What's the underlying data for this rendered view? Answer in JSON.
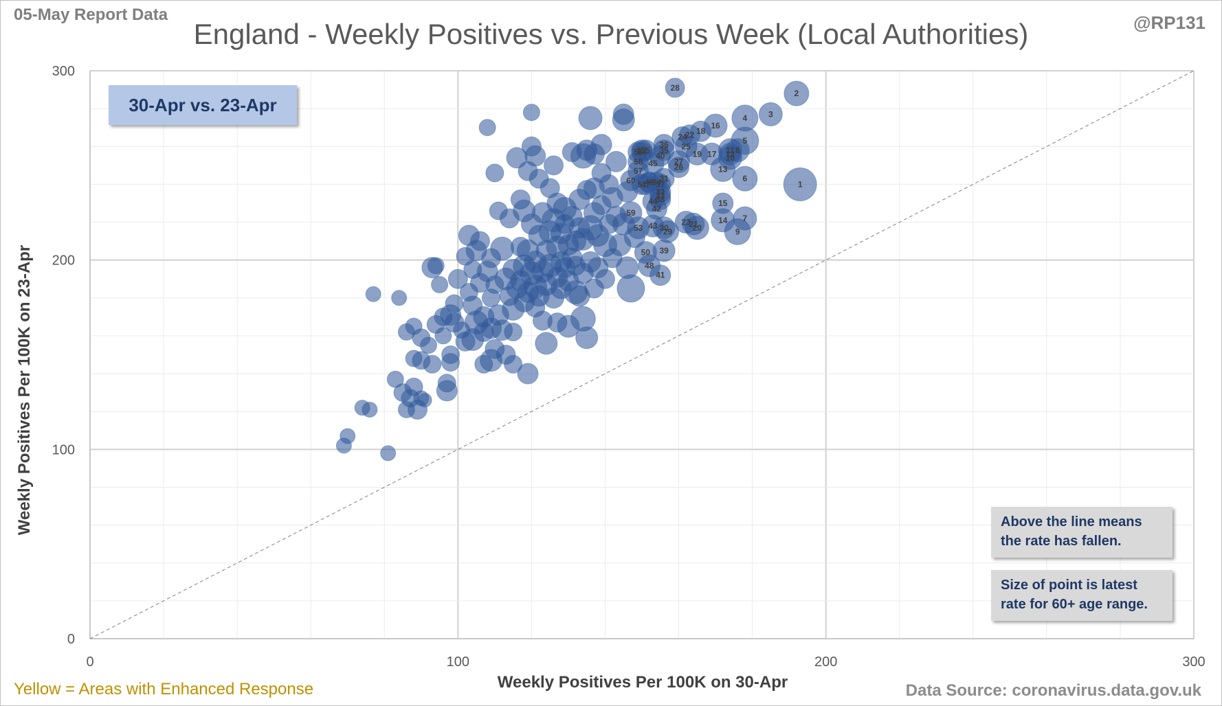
{
  "header": {
    "report": "05-May Report Data",
    "handle": "@RP131"
  },
  "footer": {
    "legend_note": "Yellow = Areas with Enhanced  Response",
    "source": "Data Source: coronavirus.data.gov.uk"
  },
  "period_box": "30-Apr vs. 23-Apr",
  "notes": {
    "line": "Above the line means the rate has fallen.",
    "size": "Size of point is latest rate for 60+ age range."
  },
  "colors": {
    "point": "#2f5597",
    "label": "#404040",
    "grid": "#d9d9d9"
  },
  "chart_data": {
    "type": "scatter",
    "title": "England - Weekly Positives vs. Previous Week (Local Authorities)",
    "xlabel": "Weekly Positives Per 100K on 30-Apr",
    "ylabel": "Weekly Positives Per 100K on 23-Apr",
    "xlim": [
      0,
      300
    ],
    "ylim": [
      0,
      300
    ],
    "xticks": [
      0,
      100,
      200,
      300
    ],
    "yticks": [
      0,
      100,
      200,
      300
    ],
    "grid": true,
    "reference_line": "y = x",
    "bubble_size": "latest rate for 60+ age range",
    "labelled_points": [
      {
        "label": "1",
        "x": 193,
        "y": 240,
        "s": 24
      },
      {
        "label": "2",
        "x": 192,
        "y": 288,
        "s": 18
      },
      {
        "label": "3",
        "x": 185,
        "y": 277,
        "s": 17
      },
      {
        "label": "4",
        "x": 178,
        "y": 275,
        "s": 19
      },
      {
        "label": "5",
        "x": 178,
        "y": 263,
        "s": 20
      },
      {
        "label": "6",
        "x": 178,
        "y": 243,
        "s": 18
      },
      {
        "label": "7",
        "x": 178,
        "y": 222,
        "s": 17
      },
      {
        "label": "9",
        "x": 176,
        "y": 215,
        "s": 19
      },
      {
        "label": "10",
        "x": 174,
        "y": 254,
        "s": 17
      },
      {
        "label": "11",
        "x": 174,
        "y": 258,
        "s": 17
      },
      {
        "label": "8",
        "x": 176,
        "y": 258,
        "s": 17
      },
      {
        "label": "12",
        "x": 174,
        "y": 256,
        "s": 16
      },
      {
        "label": "13",
        "x": 172,
        "y": 248,
        "s": 18
      },
      {
        "label": "14",
        "x": 172,
        "y": 221,
        "s": 17
      },
      {
        "label": "15",
        "x": 172,
        "y": 230,
        "s": 15
      },
      {
        "label": "16",
        "x": 170,
        "y": 271,
        "s": 17
      },
      {
        "label": "17",
        "x": 169,
        "y": 256,
        "s": 16
      },
      {
        "label": "18",
        "x": 166,
        "y": 268,
        "s": 15
      },
      {
        "label": "19",
        "x": 165,
        "y": 256,
        "s": 16
      },
      {
        "label": "20",
        "x": 165,
        "y": 217,
        "s": 17
      },
      {
        "label": "21",
        "x": 164,
        "y": 219,
        "s": 16
      },
      {
        "label": "22",
        "x": 163,
        "y": 266,
        "s": 15
      },
      {
        "label": "23",
        "x": 162,
        "y": 220,
        "s": 16
      },
      {
        "label": "24",
        "x": 161,
        "y": 265,
        "s": 15
      },
      {
        "label": "25",
        "x": 162,
        "y": 260,
        "s": 16
      },
      {
        "label": "26",
        "x": 160,
        "y": 249,
        "s": 15
      },
      {
        "label": "27",
        "x": 160,
        "y": 252,
        "s": 16
      },
      {
        "label": "28",
        "x": 159,
        "y": 291,
        "s": 14
      },
      {
        "label": "29",
        "x": 157,
        "y": 215,
        "s": 16
      },
      {
        "label": "30",
        "x": 156,
        "y": 217,
        "s": 16
      },
      {
        "label": "31",
        "x": 156,
        "y": 243,
        "s": 15
      },
      {
        "label": "32",
        "x": 155,
        "y": 236,
        "s": 15
      },
      {
        "label": "33",
        "x": 155,
        "y": 234,
        "s": 15
      },
      {
        "label": "34",
        "x": 154,
        "y": 241,
        "s": 15
      },
      {
        "label": "35",
        "x": 156,
        "y": 258,
        "s": 15
      },
      {
        "label": "36",
        "x": 156,
        "y": 261,
        "s": 15
      },
      {
        "label": "37",
        "x": 155,
        "y": 240,
        "s": 15
      },
      {
        "label": "38",
        "x": 155,
        "y": 232,
        "s": 15
      },
      {
        "label": "39",
        "x": 156,
        "y": 205,
        "s": 16
      },
      {
        "label": "40",
        "x": 155,
        "y": 255,
        "s": 15
      },
      {
        "label": "41",
        "x": 155,
        "y": 192,
        "s": 15
      },
      {
        "label": "42",
        "x": 154,
        "y": 227,
        "s": 15
      },
      {
        "label": "43",
        "x": 153,
        "y": 218,
        "s": 16
      },
      {
        "label": "44",
        "x": 153,
        "y": 231,
        "s": 15
      },
      {
        "label": "45",
        "x": 153,
        "y": 251,
        "s": 16
      },
      {
        "label": "46",
        "x": 152,
        "y": 241,
        "s": 15
      },
      {
        "label": "47",
        "x": 151,
        "y": 240,
        "s": 15
      },
      {
        "label": "48",
        "x": 152,
        "y": 197,
        "s": 16
      },
      {
        "label": "49",
        "x": 152,
        "y": 241,
        "s": 15
      },
      {
        "label": "50",
        "x": 151,
        "y": 204,
        "s": 16
      },
      {
        "label": "51",
        "x": 150,
        "y": 240,
        "s": 15
      },
      {
        "label": "52",
        "x": 150,
        "y": 258,
        "s": 15
      },
      {
        "label": "53",
        "x": 149,
        "y": 217,
        "s": 16
      },
      {
        "label": "54",
        "x": 150,
        "y": 257,
        "s": 15
      },
      {
        "label": "55",
        "x": 151,
        "y": 258,
        "s": 15
      },
      {
        "label": "56",
        "x": 149,
        "y": 257,
        "s": 15
      },
      {
        "label": "57",
        "x": 149,
        "y": 247,
        "s": 15
      },
      {
        "label": "58",
        "x": 149,
        "y": 252,
        "s": 15
      },
      {
        "label": "59",
        "x": 147,
        "y": 225,
        "s": 16
      },
      {
        "label": "60",
        "x": 147,
        "y": 242,
        "s": 15
      }
    ],
    "other_points": [
      [
        69,
        102,
        11
      ],
      [
        70,
        107,
        11
      ],
      [
        74,
        122,
        11
      ],
      [
        76,
        121,
        11
      ],
      [
        77,
        182,
        11
      ],
      [
        81,
        98,
        11
      ],
      [
        83,
        137,
        12
      ],
      [
        84,
        180,
        11
      ],
      [
        85,
        130,
        13
      ],
      [
        86,
        121,
        12
      ],
      [
        86,
        162,
        12
      ],
      [
        87,
        127,
        13
      ],
      [
        88,
        148,
        12
      ],
      [
        88,
        133,
        13
      ],
      [
        88,
        165,
        12
      ],
      [
        89,
        121,
        14
      ],
      [
        90,
        127,
        11
      ],
      [
        90,
        147,
        13
      ],
      [
        90,
        159,
        13
      ],
      [
        91,
        126,
        10
      ],
      [
        92,
        155,
        12
      ],
      [
        93,
        145,
        13
      ],
      [
        93,
        196,
        15
      ],
      [
        94,
        166,
        13
      ],
      [
        94,
        197,
        12
      ],
      [
        95,
        187,
        12
      ],
      [
        96,
        170,
        13
      ],
      [
        96,
        160,
        12
      ],
      [
        97,
        135,
        13
      ],
      [
        97,
        131,
        15
      ],
      [
        98,
        150,
        13
      ],
      [
        98,
        146,
        13
      ],
      [
        98,
        171,
        15
      ],
      [
        99,
        167,
        14
      ],
      [
        99,
        177,
        13
      ],
      [
        100,
        190,
        14
      ],
      [
        101,
        163,
        12
      ],
      [
        102,
        202,
        13
      ],
      [
        102,
        157,
        14
      ],
      [
        103,
        213,
        15
      ],
      [
        103,
        183,
        13
      ],
      [
        104,
        158,
        16
      ],
      [
        104,
        176,
        14
      ],
      [
        104,
        195,
        13
      ],
      [
        105,
        167,
        17
      ],
      [
        105,
        205,
        15
      ],
      [
        106,
        210,
        14
      ],
      [
        106,
        188,
        14
      ],
      [
        107,
        170,
        15
      ],
      [
        107,
        145,
        13
      ],
      [
        107,
        162,
        14
      ],
      [
        108,
        270,
        12
      ],
      [
        108,
        194,
        15
      ],
      [
        109,
        201,
        14
      ],
      [
        109,
        180,
        13
      ],
      [
        109,
        147,
        16
      ],
      [
        109,
        164,
        15
      ],
      [
        110,
        187,
        13
      ],
      [
        110,
        246,
        13
      ],
      [
        110,
        153,
        14
      ],
      [
        111,
        226,
        13
      ],
      [
        111,
        171,
        15
      ],
      [
        112,
        206,
        17
      ],
      [
        112,
        163,
        15
      ],
      [
        113,
        190,
        16
      ],
      [
        113,
        150,
        14
      ],
      [
        114,
        222,
        14
      ],
      [
        114,
        181,
        14
      ],
      [
        115,
        162,
        13
      ],
      [
        115,
        195,
        15
      ],
      [
        115,
        174,
        16
      ],
      [
        115,
        145,
        13
      ],
      [
        116,
        185,
        15
      ],
      [
        116,
        254,
        15
      ],
      [
        117,
        207,
        14
      ],
      [
        117,
        189,
        15
      ],
      [
        117,
        232,
        14
      ],
      [
        118,
        178,
        15
      ],
      [
        118,
        197,
        16
      ],
      [
        118,
        226,
        16
      ],
      [
        119,
        183,
        15
      ],
      [
        119,
        205,
        16
      ],
      [
        119,
        247,
        14
      ],
      [
        119,
        140,
        15
      ],
      [
        120,
        193,
        17
      ],
      [
        120,
        219,
        15
      ],
      [
        120,
        260,
        14
      ],
      [
        120,
        278,
        12
      ],
      [
        121,
        186,
        17
      ],
      [
        121,
        175,
        14
      ],
      [
        121,
        199,
        16
      ],
      [
        121,
        255,
        15
      ],
      [
        122,
        213,
        15
      ],
      [
        122,
        181,
        15
      ],
      [
        122,
        243,
        14
      ],
      [
        123,
        194,
        16
      ],
      [
        123,
        168,
        14
      ],
      [
        123,
        225,
        15
      ],
      [
        124,
        187,
        16
      ],
      [
        124,
        205,
        15
      ],
      [
        124,
        156,
        16
      ],
      [
        125,
        197,
        17
      ],
      [
        125,
        215,
        16
      ],
      [
        125,
        238,
        14
      ],
      [
        126,
        180,
        15
      ],
      [
        126,
        221,
        17
      ],
      [
        126,
        250,
        14
      ],
      [
        127,
        191,
        15
      ],
      [
        127,
        207,
        16
      ],
      [
        127,
        230,
        15
      ],
      [
        127,
        167,
        14
      ],
      [
        128,
        199,
        15
      ],
      [
        128,
        185,
        15
      ],
      [
        128,
        214,
        15
      ],
      [
        129,
        219,
        14
      ],
      [
        129,
        196,
        15
      ],
      [
        129,
        227,
        17
      ],
      [
        130,
        189,
        15
      ],
      [
        130,
        208,
        15
      ],
      [
        130,
        165,
        16
      ],
      [
        131,
        201,
        15
      ],
      [
        131,
        223,
        15
      ],
      [
        131,
        257,
        14
      ],
      [
        132,
        183,
        17
      ],
      [
        132,
        210,
        15
      ],
      [
        132,
        197,
        14
      ],
      [
        133,
        217,
        15
      ],
      [
        133,
        232,
        15
      ],
      [
        133,
        181,
        15
      ],
      [
        134,
        255,
        18
      ],
      [
        134,
        193,
        15
      ],
      [
        134,
        169,
        18
      ],
      [
        134,
        211,
        16
      ],
      [
        135,
        237,
        14
      ],
      [
        135,
        258,
        15
      ],
      [
        135,
        159,
        16
      ],
      [
        136,
        275,
        17
      ],
      [
        136,
        199,
        15
      ],
      [
        136,
        217,
        18
      ],
      [
        137,
        225,
        15
      ],
      [
        137,
        238,
        15
      ],
      [
        137,
        256,
        15
      ],
      [
        137,
        185,
        14
      ],
      [
        138,
        196,
        15
      ],
      [
        138,
        213,
        16
      ],
      [
        139,
        246,
        14
      ],
      [
        139,
        229,
        14
      ],
      [
        139,
        261,
        15
      ],
      [
        140,
        208,
        17
      ],
      [
        140,
        190,
        14
      ],
      [
        141,
        240,
        14
      ],
      [
        141,
        219,
        14
      ],
      [
        142,
        233,
        15
      ],
      [
        142,
        201,
        14
      ],
      [
        143,
        252,
        15
      ],
      [
        143,
        223,
        15
      ],
      [
        144,
        208,
        16
      ],
      [
        145,
        274,
        16
      ],
      [
        145,
        277,
        15
      ],
      [
        145,
        219,
        16
      ],
      [
        146,
        236,
        15
      ],
      [
        146,
        196,
        16
      ],
      [
        147,
        185,
        20
      ],
      [
        148,
        212,
        15
      ]
    ]
  }
}
